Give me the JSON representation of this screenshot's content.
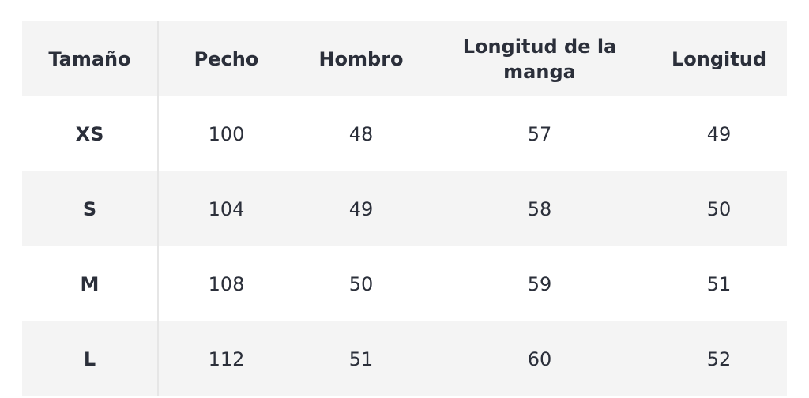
{
  "table": {
    "header": [
      "Tamaño",
      "Pecho",
      "Hombro",
      "Longitud de la manga",
      "Longitud"
    ],
    "rows": [
      [
        "XS",
        100,
        48,
        57,
        49
      ],
      [
        "S",
        104,
        49,
        58,
        50
      ],
      [
        "M",
        108,
        50,
        59,
        51
      ],
      [
        "L",
        112,
        51,
        60,
        52
      ]
    ]
  }
}
